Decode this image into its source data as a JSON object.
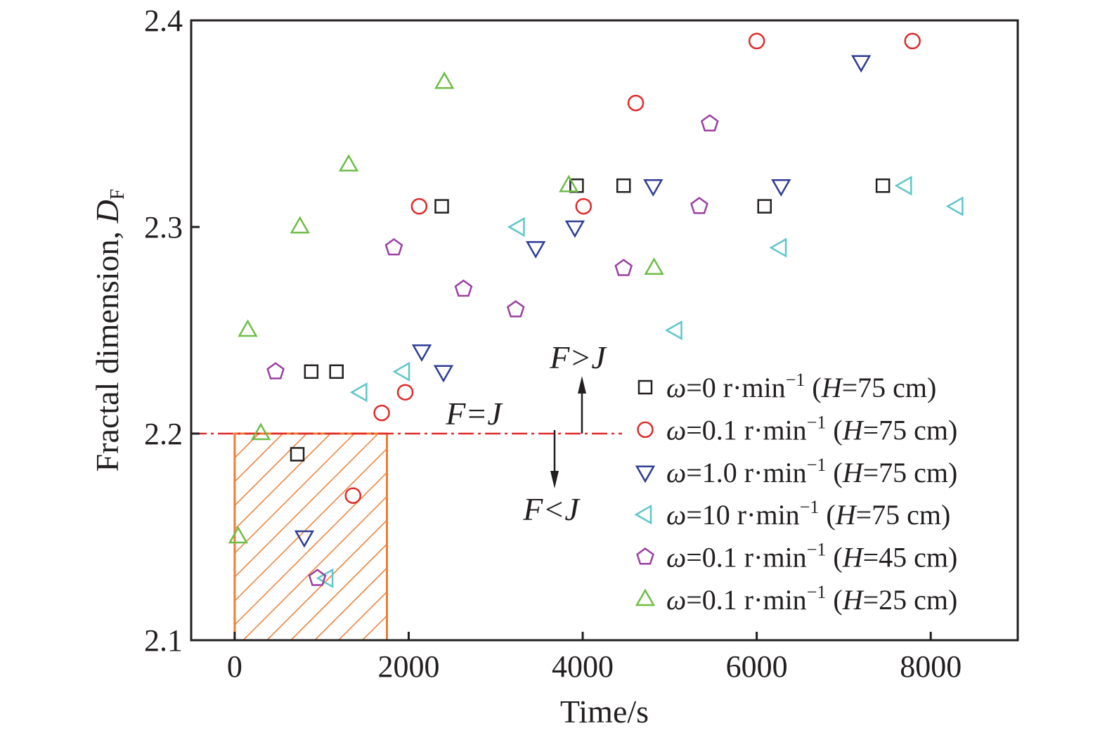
{
  "chart_data": {
    "type": "scatter",
    "xlabel": "Time/s",
    "ylabel": "Fractal dimension, ",
    "ylabel_symbol": "D",
    "ylabel_sub": "F",
    "xlim": [
      -500,
      9000
    ],
    "ylim": [
      2.1,
      2.4
    ],
    "xticks": [
      "0",
      "2000",
      "4000",
      "6000",
      "8000"
    ],
    "yticks": [
      "2.1",
      "2.2",
      "2.3",
      "2.4"
    ],
    "grid": false,
    "legend_position": "bottom-right",
    "threshold": {
      "y": 2.2,
      "color": "#e02a2a"
    },
    "region": {
      "x": [
        0,
        1750
      ],
      "y": [
        2.1,
        2.2
      ],
      "color": "#ee7d31"
    },
    "annotations": {
      "equal": "F=J",
      "greater": "F>J",
      "less": "F<J"
    },
    "series": [
      {
        "legend": {
          "symbol": "ω",
          "eq": "=0 r·min",
          "sup": "−1",
          "open": " (",
          "hsym": "H",
          "hval": "=75 cm)"
        },
        "marker": "square",
        "color": "#231f20",
        "points": [
          [
            880,
            2.23
          ],
          [
            1170,
            2.23
          ],
          [
            720,
            2.19
          ],
          [
            2380,
            2.31
          ],
          [
            3930,
            2.32
          ],
          [
            4470,
            2.32
          ],
          [
            6090,
            2.31
          ],
          [
            7450,
            2.32
          ]
        ]
      },
      {
        "legend": {
          "symbol": "ω",
          "eq": "=0.1 r·min",
          "sup": "−1",
          "open": " (",
          "hsym": "H",
          "hval": "=75 cm)"
        },
        "marker": "circle",
        "color": "#e02a2a",
        "points": [
          [
            1360,
            2.17
          ],
          [
            1690,
            2.21
          ],
          [
            1960,
            2.22
          ],
          [
            2120,
            2.31
          ],
          [
            4010,
            2.31
          ],
          [
            4610,
            2.36
          ],
          [
            6000,
            2.39
          ],
          [
            7790,
            2.39
          ]
        ]
      },
      {
        "legend": {
          "symbol": "ω",
          "eq": "=1.0 r·min",
          "sup": "−1",
          "open": " (",
          "hsym": "H",
          "hval": "=75 cm)"
        },
        "marker": "triangle-down",
        "color": "#2e3d93",
        "points": [
          [
            800,
            2.15
          ],
          [
            2150,
            2.24
          ],
          [
            2400,
            2.23
          ],
          [
            3460,
            2.29
          ],
          [
            3910,
            2.3
          ],
          [
            4810,
            2.32
          ],
          [
            6280,
            2.32
          ],
          [
            7200,
            2.38
          ]
        ]
      },
      {
        "legend": {
          "symbol": "ω",
          "eq": "=10 r·min",
          "sup": "−1",
          "open": " (",
          "hsym": "H",
          "hval": "=75 cm)"
        },
        "marker": "triangle-left",
        "color": "#5fc6c9",
        "points": [
          [
            1060,
            2.13
          ],
          [
            1450,
            2.22
          ],
          [
            1940,
            2.23
          ],
          [
            3260,
            2.3
          ],
          [
            5070,
            2.25
          ],
          [
            6270,
            2.29
          ],
          [
            7710,
            2.32
          ],
          [
            8300,
            2.31
          ]
        ]
      },
      {
        "legend": {
          "symbol": "ω",
          "eq": "=0.1 r·min",
          "sup": "−1",
          "open": " (",
          "hsym": "H",
          "hval": "=45 cm)"
        },
        "marker": "pentagon",
        "color": "#9a3fa0",
        "points": [
          [
            470,
            2.23
          ],
          [
            950,
            2.13
          ],
          [
            1830,
            2.29
          ],
          [
            2630,
            2.27
          ],
          [
            3230,
            2.26
          ],
          [
            4470,
            2.28
          ],
          [
            5340,
            2.31
          ],
          [
            5460,
            2.35
          ]
        ]
      },
      {
        "legend": {
          "symbol": "ω",
          "eq": "=0.1 r·min",
          "sup": "−1",
          "open": " (",
          "hsym": "H",
          "hval": "=25 cm)"
        },
        "marker": "triangle-up",
        "color": "#6ebd45",
        "points": [
          [
            40,
            2.15
          ],
          [
            150,
            2.25
          ],
          [
            300,
            2.2
          ],
          [
            750,
            2.3
          ],
          [
            1310,
            2.33
          ],
          [
            2410,
            2.37
          ],
          [
            3840,
            2.32
          ],
          [
            4820,
            2.28
          ]
        ]
      }
    ]
  }
}
